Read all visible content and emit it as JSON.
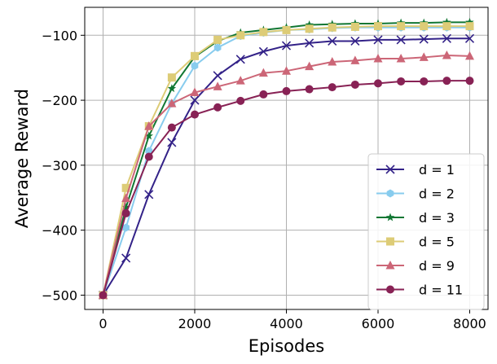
{
  "chart_data": {
    "type": "line",
    "title": "",
    "xlabel": "Episodes",
    "ylabel": "Average Reward",
    "xlim": [
      -400,
      8400
    ],
    "ylim": [
      -522,
      -57
    ],
    "xticks": [
      0,
      2000,
      4000,
      6000,
      8000
    ],
    "yticks": [
      -500,
      -400,
      -300,
      -200,
      -100
    ],
    "xtick_labels": [
      "0",
      "2000",
      "4000",
      "6000",
      "8000"
    ],
    "ytick_labels": [
      "−500",
      "−400",
      "−300",
      "−200",
      "−100"
    ],
    "grid": true,
    "legend_position": "lower-right",
    "x": [
      0,
      500,
      1000,
      1500,
      2000,
      2500,
      3000,
      3500,
      4000,
      4500,
      5000,
      5500,
      6000,
      6500,
      7000,
      7500,
      8000
    ],
    "series": [
      {
        "name": "d = 1",
        "color": "#332288",
        "marker": "x",
        "values": [
          -500,
          -443,
          -345,
          -265,
          -200,
          -162,
          -137,
          -125,
          -116,
          -112,
          -109,
          -109,
          -107,
          -107,
          -106,
          -105,
          -105
        ]
      },
      {
        "name": "d = 2",
        "color": "#88ccee",
        "marker": "hexagon",
        "values": [
          -500,
          -396,
          -278,
          -205,
          -147,
          -119,
          -101,
          -96,
          -92,
          -91,
          -89,
          -88,
          -88,
          -88,
          -88,
          -88,
          -88
        ]
      },
      {
        "name": "d = 3",
        "color": "#117733",
        "marker": "star",
        "values": [
          -500,
          -365,
          -255,
          -182,
          -133,
          -109,
          -96,
          -92,
          -88,
          -84,
          -83,
          -82,
          -82,
          -81,
          -81,
          -80,
          -80
        ]
      },
      {
        "name": "d = 5",
        "color": "#ddcc77",
        "marker": "square",
        "values": [
          -500,
          -335,
          -240,
          -165,
          -132,
          -107,
          -100,
          -95,
          -92,
          -90,
          -88,
          -87,
          -86,
          -86,
          -86,
          -86,
          -86
        ]
      },
      {
        "name": "d = 9",
        "color": "#cc6677",
        "marker": "triangle",
        "values": [
          -500,
          -351,
          -240,
          -205,
          -188,
          -179,
          -170,
          -158,
          -155,
          -148,
          -141,
          -139,
          -136,
          -136,
          -134,
          -131,
          -132
        ]
      },
      {
        "name": "d = 11",
        "color": "#882255",
        "marker": "circle",
        "values": [
          -500,
          -374,
          -287,
          -242,
          -222,
          -211,
          -201,
          -191,
          -186,
          -183,
          -180,
          -176,
          -174,
          -171,
          -171,
          -170,
          -170
        ]
      }
    ]
  }
}
